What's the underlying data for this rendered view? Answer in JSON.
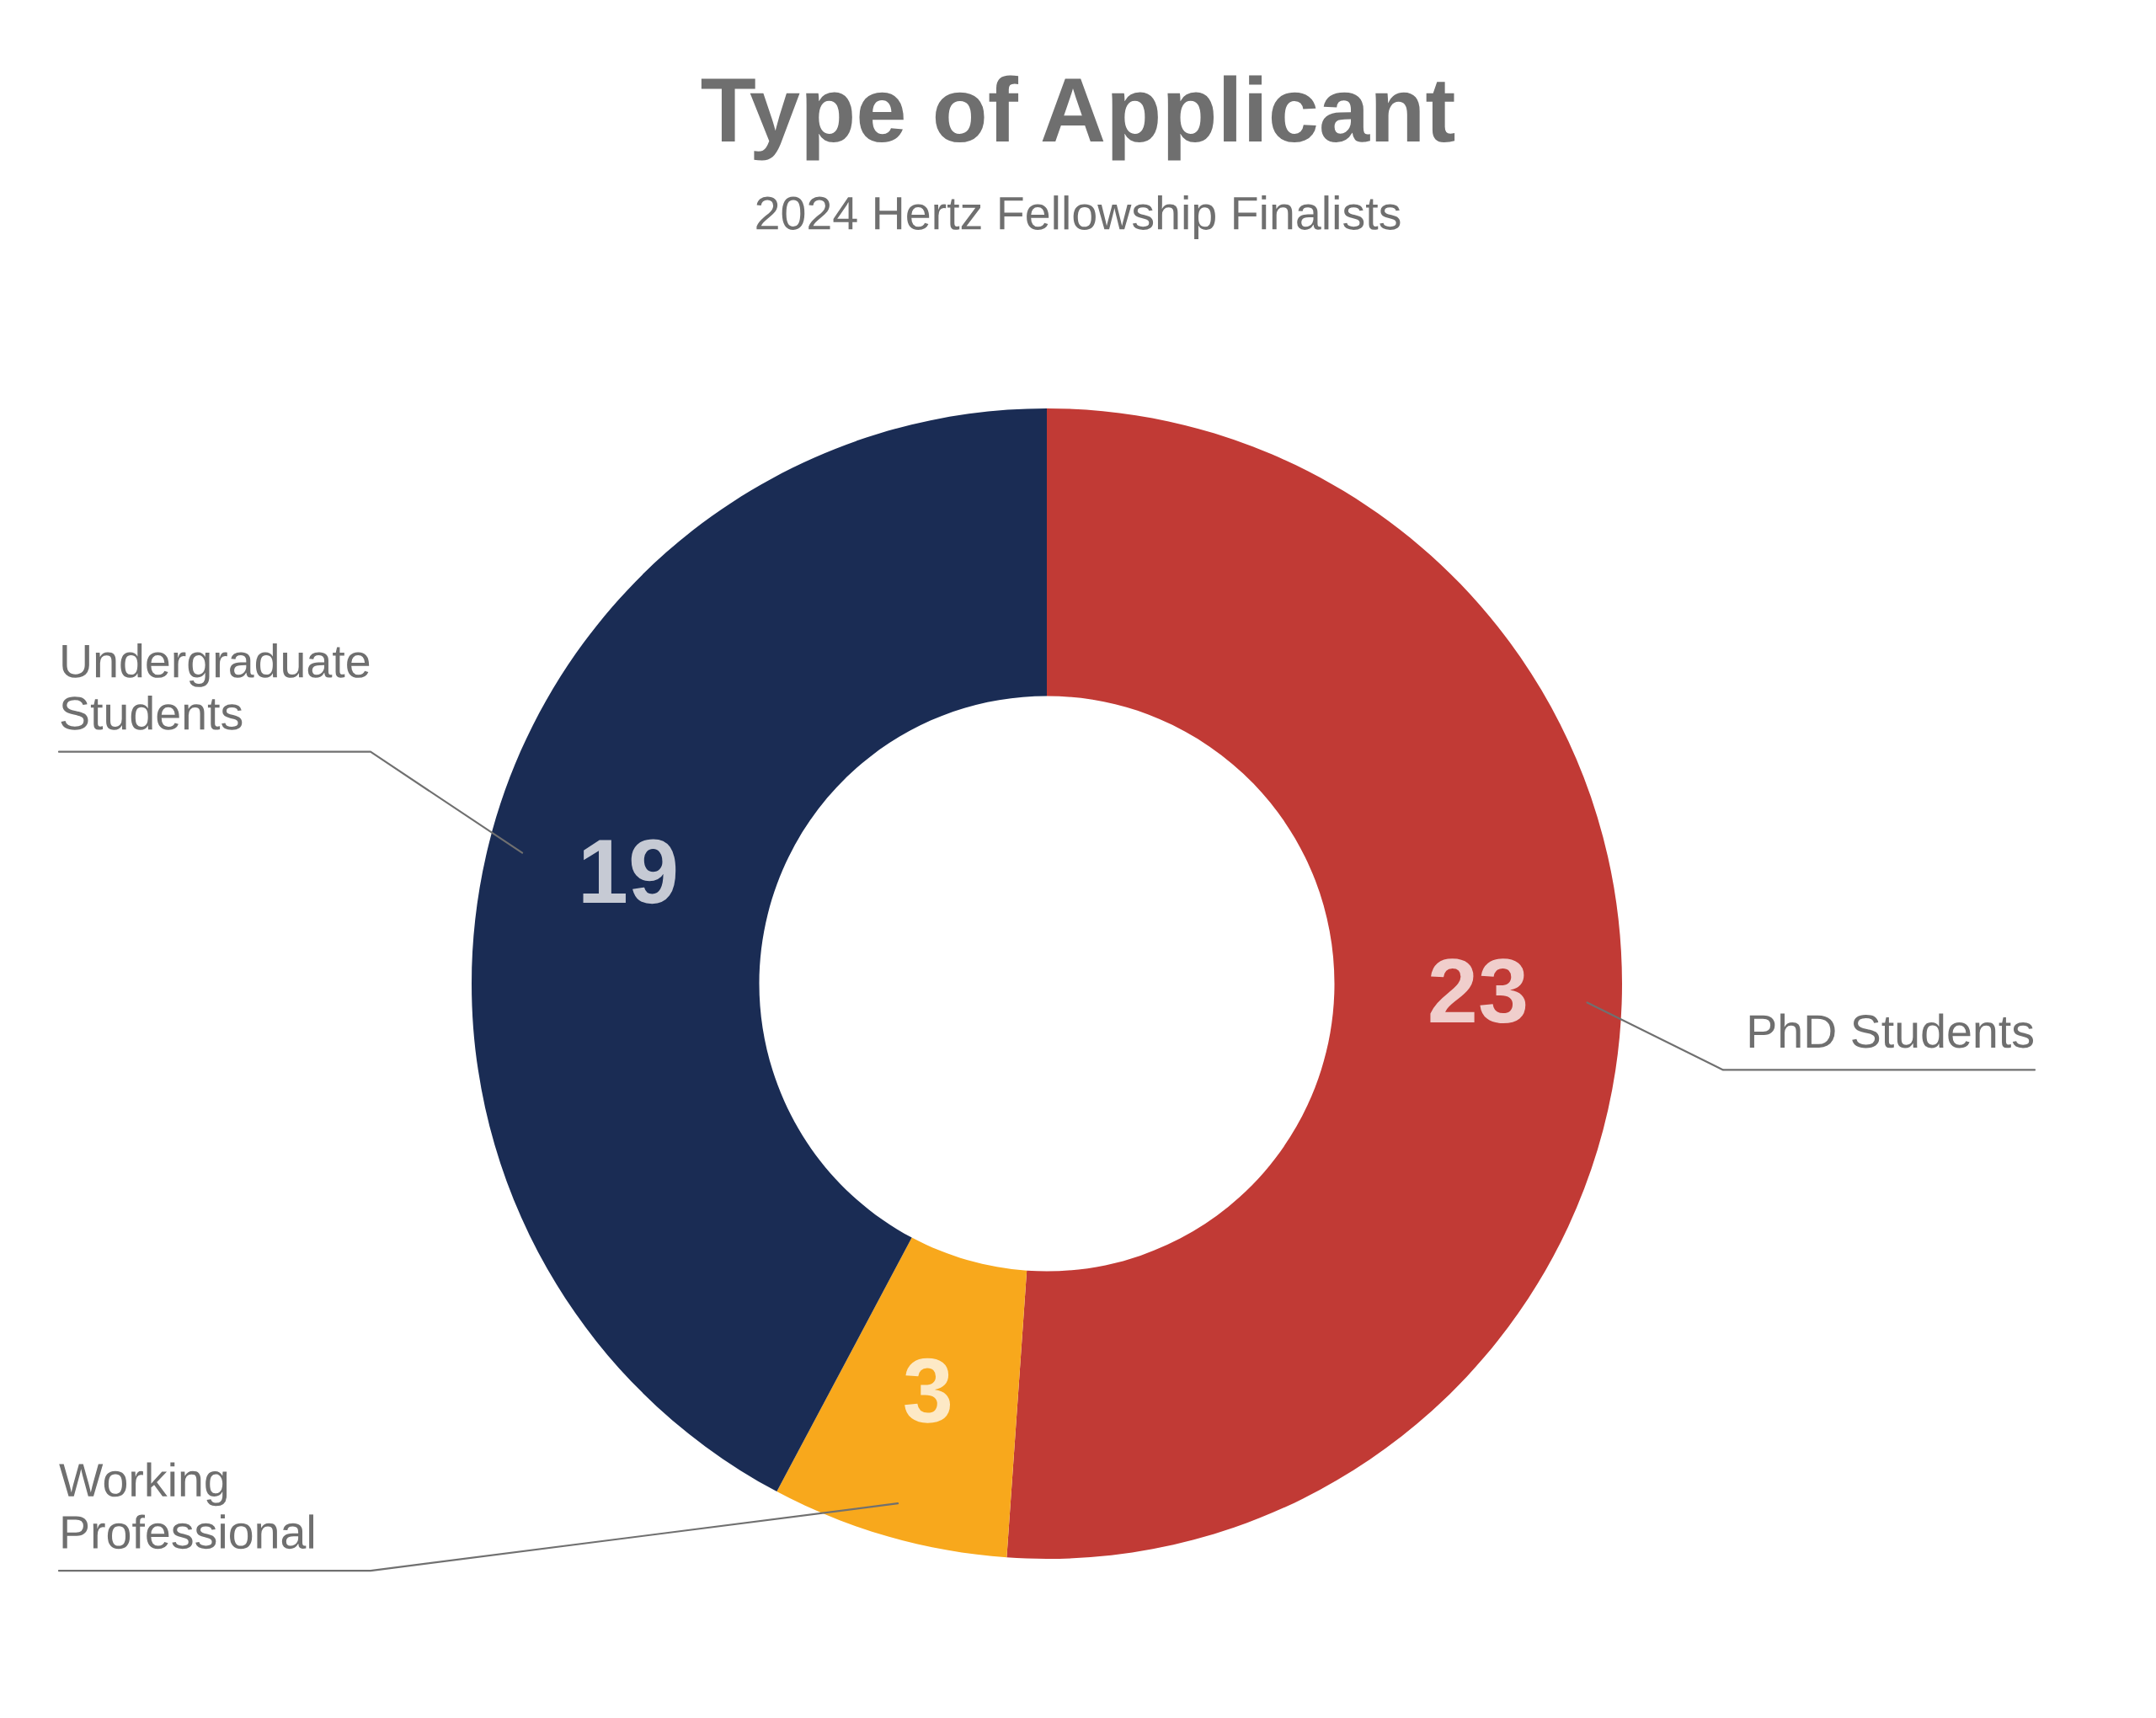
{
  "chart_data": {
    "type": "donut",
    "title": "Type of Applicant",
    "subtitle": "2024 Hertz Fellowship Finalists",
    "categories": [
      "PhD Students",
      "Working Professional",
      "Undergraduate Students"
    ],
    "values": [
      23,
      3,
      19
    ],
    "colors": [
      "#c13a35",
      "#f8a81c",
      "#1a2c54"
    ],
    "data_labels": true
  }
}
